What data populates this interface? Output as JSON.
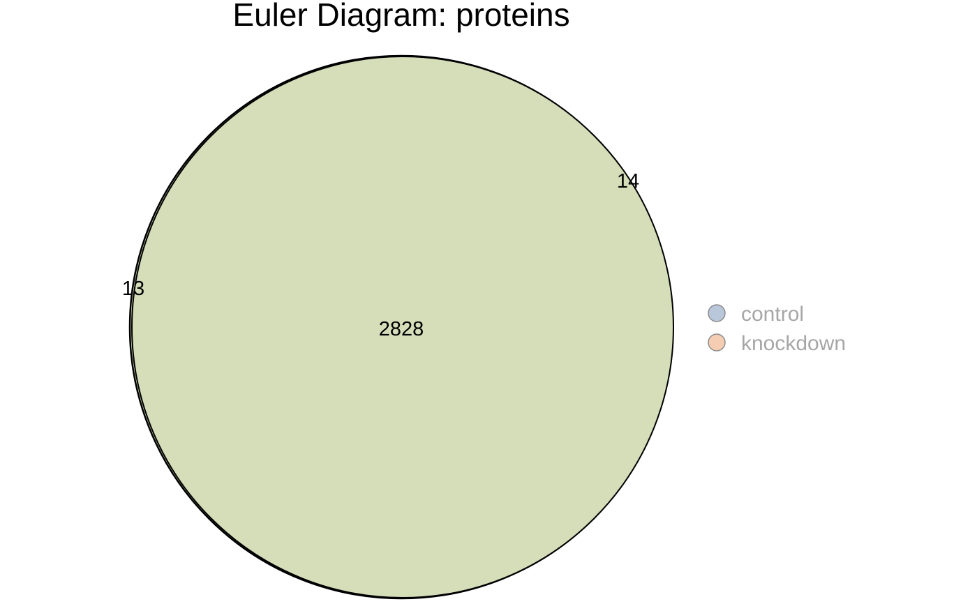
{
  "title": "Euler Diagram: proteins",
  "sets": [
    {
      "name": "control",
      "only_count": "13",
      "color": "#b9c7da",
      "stroke": "#8c8c8c"
    },
    {
      "name": "knockdown",
      "only_count": "14",
      "color": "#f4cdb3",
      "stroke": "#8c8c8c"
    }
  ],
  "intersection": {
    "sets": [
      "control",
      "knockdown"
    ],
    "count": "2828",
    "color": "#d5ddb9"
  },
  "legend": {
    "placement": "right",
    "items": [
      {
        "label": "control",
        "color": "#b9c7da"
      },
      {
        "label": "knockdown",
        "color": "#f4cdb3"
      }
    ]
  }
}
